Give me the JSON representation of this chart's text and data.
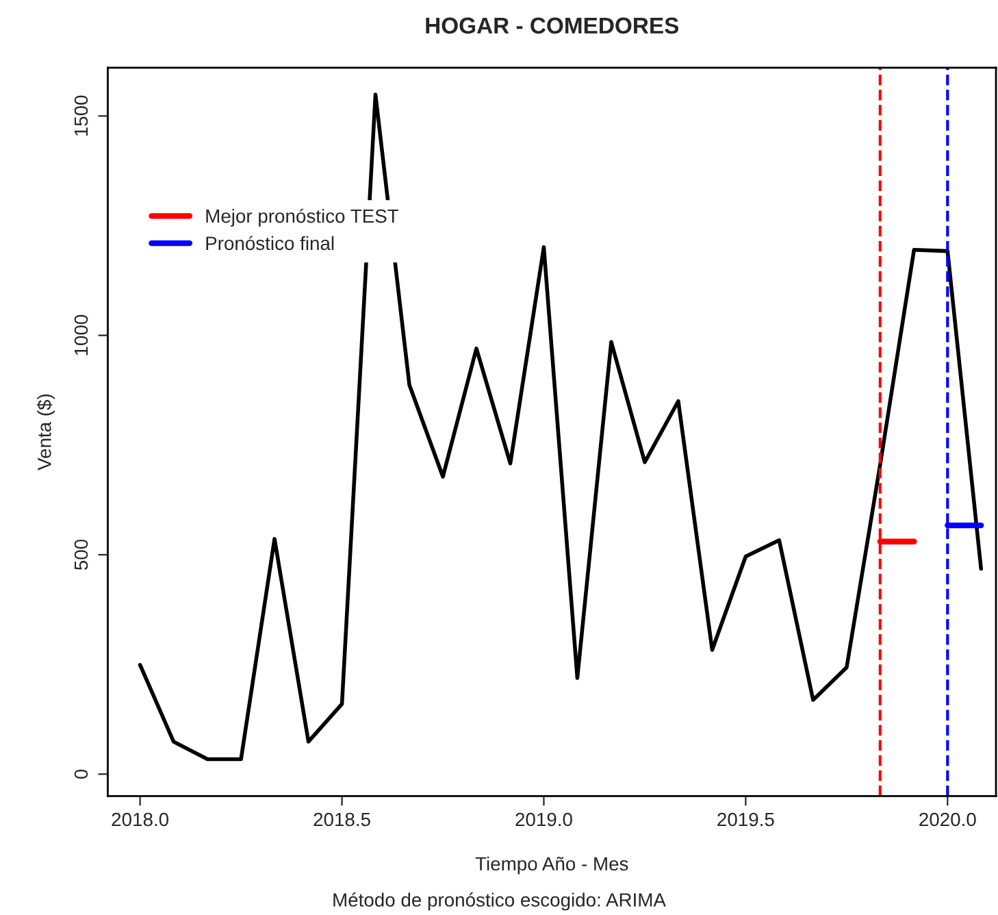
{
  "chart_data": {
    "type": "line",
    "title": "HOGAR - COMEDORES",
    "xlabel": "Tiempo Año - Mes",
    "ylabel": "Venta ($)",
    "annotations": [
      "Método de pronóstico escogido: ARIMA"
    ],
    "series": [
      {
        "color": "#000000",
        "x": [
          2018.0,
          2018.083,
          2018.167,
          2018.25,
          2018.333,
          2018.417,
          2018.5,
          2018.583,
          2018.667,
          2018.75,
          2018.833,
          2018.917,
          2019.0,
          2019.083,
          2019.167,
          2019.25,
          2019.333,
          2019.417,
          2019.5,
          2019.583,
          2019.667,
          2019.75,
          2019.833,
          2019.917,
          2020.0,
          2020.083
        ],
        "values": [
          249,
          74,
          34,
          34,
          536,
          74,
          160,
          1549,
          887,
          678,
          970,
          708,
          1201,
          219,
          985,
          711,
          850,
          283,
          496,
          533,
          169,
          243,
          705,
          1195,
          1192,
          468
        ]
      },
      {
        "name": "Mejor pronóstico TEST",
        "color": "#ff0000",
        "x": [
          2019.833,
          2019.917
        ],
        "values": [
          530,
          530
        ]
      },
      {
        "name": "Pronóstico final",
        "color": "#0000ff",
        "x": [
          2020.0,
          2020.083
        ],
        "values": [
          567,
          567
        ]
      }
    ],
    "ref_lines": [
      {
        "axis": "x",
        "value": 2019.833,
        "color": "#ff0000",
        "line_style": "dashed"
      },
      {
        "axis": "x",
        "value": 2020.0,
        "color": "#0000ff",
        "line_style": "dashed"
      }
    ],
    "xlim": [
      2017.92,
      2020.12
    ],
    "ylim": [
      -50,
      1610
    ],
    "xticks": [
      {
        "value": 2018.0,
        "label": "2018.0"
      },
      {
        "value": 2018.5,
        "label": "2018.5"
      },
      {
        "value": 2019.0,
        "label": "2019.0"
      },
      {
        "value": 2019.5,
        "label": "2019.5"
      },
      {
        "value": 2020.0,
        "label": "2020.0"
      }
    ],
    "yticks": [
      0,
      500,
      1000,
      1500
    ],
    "grid": false,
    "legend": "top left",
    "marker": "none",
    "line_style": "solid"
  }
}
